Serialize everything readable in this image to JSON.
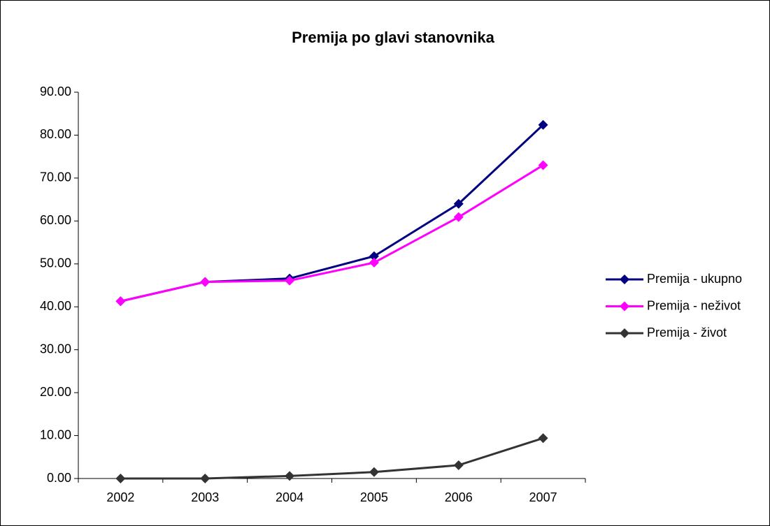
{
  "chart_data": {
    "type": "line",
    "title": "Premija po glavi stanovnika",
    "categories": [
      "2002",
      "2003",
      "2004",
      "2005",
      "2006",
      "2007"
    ],
    "series": [
      {
        "name": "Premija - ukupno",
        "color": "#000080",
        "values": [
          41.3,
          45.8,
          46.6,
          51.8,
          64.0,
          82.4
        ]
      },
      {
        "name": "Premija - neživot",
        "color": "#ff00ff",
        "values": [
          41.3,
          45.8,
          46.1,
          50.3,
          60.9,
          73.0
        ]
      },
      {
        "name": "Premija - život",
        "color": "#333333",
        "values": [
          0,
          0,
          0.6,
          1.5,
          3.1,
          9.4
        ]
      }
    ],
    "ylim": [
      0,
      90
    ],
    "yticks": [
      {
        "value": 0,
        "label": "0.00"
      },
      {
        "value": 10,
        "label": "10.00"
      },
      {
        "value": 20,
        "label": "20.00"
      },
      {
        "value": 30,
        "label": "30.00"
      },
      {
        "value": 40,
        "label": "40.00"
      },
      {
        "value": 50,
        "label": "50.00"
      },
      {
        "value": 60,
        "label": "60.00"
      },
      {
        "value": 70,
        "label": "70.00"
      },
      {
        "value": 80,
        "label": "80.00"
      },
      {
        "value": 90,
        "label": "90.00"
      }
    ],
    "legend": "right"
  }
}
